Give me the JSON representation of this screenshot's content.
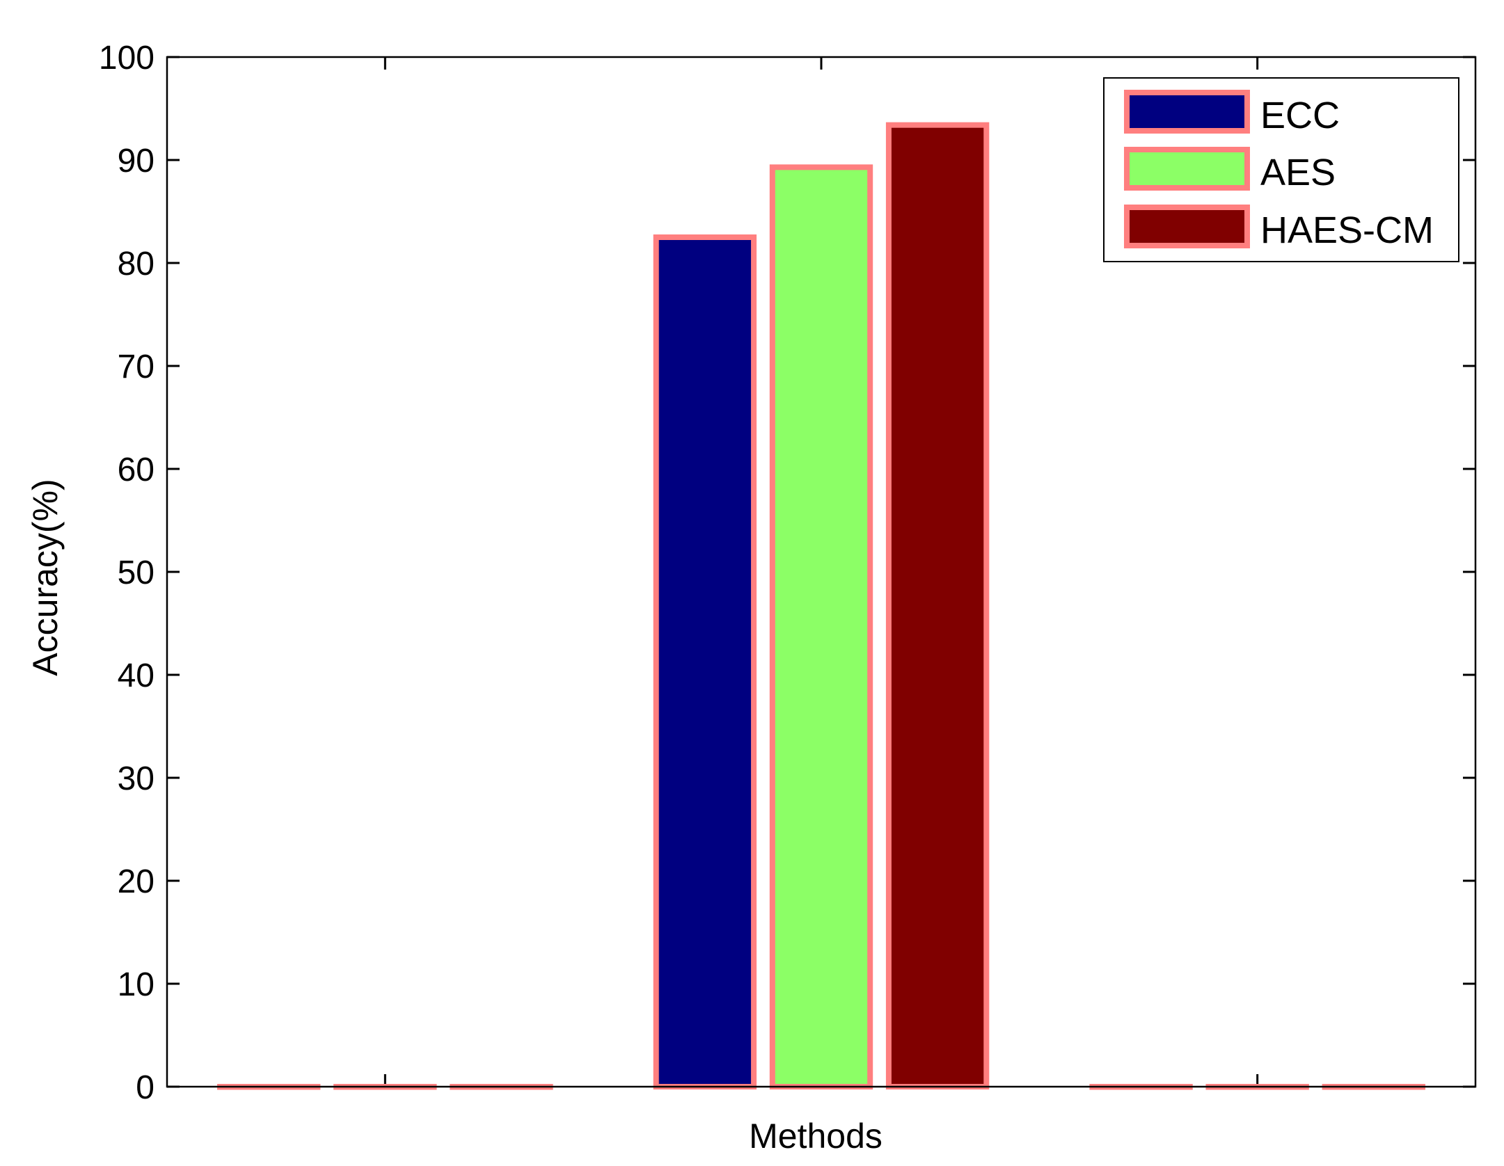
{
  "chart_data": {
    "type": "bar",
    "categories": [
      "",
      "",
      ""
    ],
    "series": [
      {
        "name": "ECC",
        "values": [
          0,
          82.5,
          0
        ],
        "color": "#000080"
      },
      {
        "name": "AES",
        "values": [
          0,
          89.3,
          0
        ],
        "color": "#8CFF66"
      },
      {
        "name": "HAES-CM",
        "values": [
          0,
          93.4,
          0
        ],
        "color": "#800000"
      }
    ],
    "bar_edge_color": "#FF7F7F",
    "title": "",
    "xlabel": "Methods",
    "ylabel": "Accuracy(%)",
    "ylim": [
      0,
      100
    ],
    "yticks": [
      0,
      10,
      20,
      30,
      40,
      50,
      60,
      70,
      80,
      90,
      100
    ],
    "ytick_labels": [
      "0",
      "10",
      "20",
      "30",
      "40",
      "50",
      "60",
      "70",
      "80",
      "90",
      "100"
    ],
    "legend_position": "top-right",
    "grid": false
  }
}
